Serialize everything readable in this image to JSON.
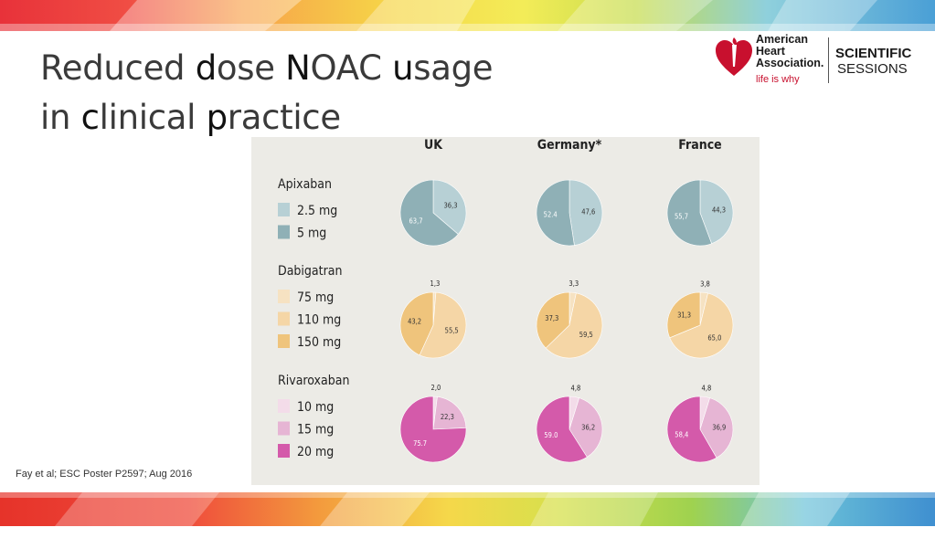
{
  "slide": {
    "title_parts": [
      {
        "t": "Reduced ",
        "b": false
      },
      {
        "t": "d",
        "b": true
      },
      {
        "t": "ose ",
        "b": false
      },
      {
        "t": "N",
        "b": true
      },
      {
        "t": "OAC ",
        "b": false
      },
      {
        "t": "u",
        "b": true
      },
      {
        "t": "sage",
        "b": false
      }
    ],
    "title_parts2": [
      {
        "t": "in ",
        "b": false
      },
      {
        "t": "c",
        "b": true
      },
      {
        "t": "linical ",
        "b": false
      },
      {
        "t": "p",
        "b": true
      },
      {
        "t": "ractice",
        "b": false
      }
    ],
    "citation": "Fay et al; ESC Poster P2597; Aug 2016"
  },
  "logo": {
    "org_line1": "American",
    "org_line2": "Heart",
    "org_line3": "Association.",
    "tagline": "life is why",
    "sessions_line1": "SCIENTIFIC",
    "sessions_line2": "SESSIONS"
  },
  "chart_data": {
    "type": "pie",
    "countries": [
      "UK",
      "Germany*",
      "France"
    ],
    "drugs": [
      {
        "name": "Apixaban",
        "doses": [
          "2.5 mg",
          "5 mg"
        ],
        "colors": [
          "#b7d0d5",
          "#8fb0b6"
        ],
        "values": {
          "UK": [
            "36,3",
            "63,7"
          ],
          "Germany*": [
            "47,6",
            "52.4"
          ],
          "France": [
            "44,3",
            "55,7"
          ]
        }
      },
      {
        "name": "Dabigatran",
        "doses": [
          "75 mg",
          "110 mg",
          "150 mg"
        ],
        "colors": [
          "#f6e2c2",
          "#f5d6a6",
          "#efc47c"
        ],
        "values": {
          "UK": [
            "1,3",
            "55,5",
            "43,2"
          ],
          "Germany*": [
            "3,3",
            "59,5",
            "37,3"
          ],
          "France": [
            "3,8",
            "65,0",
            "31,3"
          ]
        }
      },
      {
        "name": "Rivaroxaban",
        "doses": [
          "10 mg",
          "15 mg",
          "20 mg"
        ],
        "colors": [
          "#f3dce9",
          "#e6b5d4",
          "#d45aaa"
        ],
        "values": {
          "UK": [
            "2,0",
            "22,3",
            "75.7"
          ],
          "Germany*": [
            "4,8",
            "36,2",
            "59.0"
          ],
          "France": [
            "4,8",
            "36,9",
            "58,4"
          ]
        }
      }
    ]
  },
  "colors": {
    "panel": "#ecebe6",
    "aha_red": "#c8102e"
  }
}
